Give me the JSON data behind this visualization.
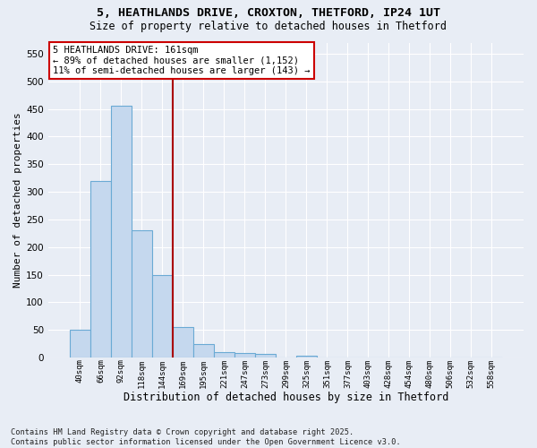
{
  "title1": "5, HEATHLANDS DRIVE, CROXTON, THETFORD, IP24 1UT",
  "title2": "Size of property relative to detached houses in Thetford",
  "xlabel": "Distribution of detached houses by size in Thetford",
  "ylabel": "Number of detached properties",
  "categories": [
    "40sqm",
    "66sqm",
    "92sqm",
    "118sqm",
    "144sqm",
    "169sqm",
    "195sqm",
    "221sqm",
    "247sqm",
    "273sqm",
    "299sqm",
    "325sqm",
    "351sqm",
    "377sqm",
    "403sqm",
    "428sqm",
    "454sqm",
    "480sqm",
    "506sqm",
    "532sqm",
    "558sqm"
  ],
  "values": [
    50,
    320,
    455,
    230,
    150,
    55,
    25,
    10,
    8,
    6,
    0,
    4,
    1,
    0,
    1,
    0,
    0,
    0,
    0,
    0,
    0
  ],
  "bar_color": "#c5d8ee",
  "bar_edge_color": "#6aaad4",
  "bar_width": 1.0,
  "vline_x": 4.5,
  "vline_color": "#aa0000",
  "ylim": [
    0,
    570
  ],
  "yticks": [
    0,
    50,
    100,
    150,
    200,
    250,
    300,
    350,
    400,
    450,
    500,
    550
  ],
  "annotation_text": "5 HEATHLANDS DRIVE: 161sqm\n← 89% of detached houses are smaller (1,152)\n11% of semi-detached houses are larger (143) →",
  "annotation_box_color": "#ffffff",
  "annotation_edge_color": "#cc0000",
  "bg_color": "#e8edf5",
  "grid_color": "#ffffff",
  "footer": "Contains HM Land Registry data © Crown copyright and database right 2025.\nContains public sector information licensed under the Open Government Licence v3.0."
}
